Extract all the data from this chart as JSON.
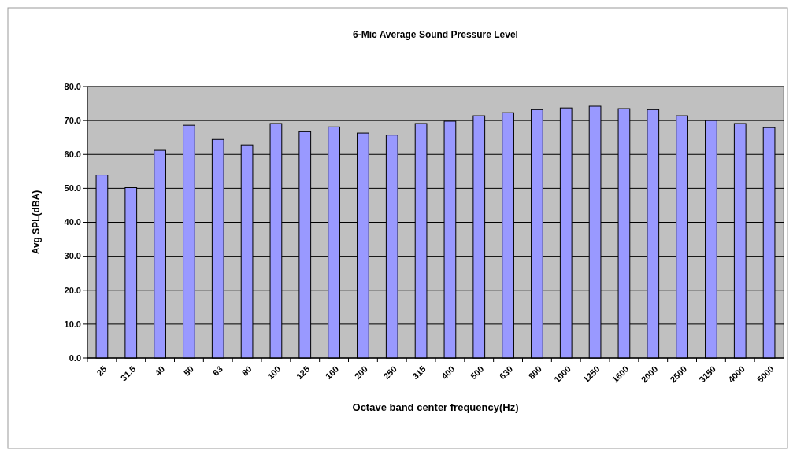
{
  "chart_data": {
    "type": "bar",
    "title": "6-Mic Average Sound Pressure Level",
    "xlabel": "Octave band center frequency(Hz)",
    "ylabel": "Avg SPL(dBA)",
    "categories": [
      "25",
      "31.5",
      "40",
      "50",
      "63",
      "80",
      "100",
      "125",
      "160",
      "200",
      "250",
      "315",
      "400",
      "500",
      "630",
      "800",
      "1000",
      "1250",
      "1600",
      "2000",
      "2500",
      "3150",
      "4000",
      "5000"
    ],
    "values": [
      53.9,
      50.2,
      61.2,
      68.6,
      64.4,
      62.8,
      69.1,
      66.7,
      68.1,
      66.3,
      65.7,
      69.1,
      69.8,
      71.4,
      72.3,
      73.2,
      73.7,
      74.2,
      73.5,
      73.2,
      71.4,
      70.0,
      69.1,
      67.9
    ],
    "color": "#9999ff",
    "ylim": [
      0,
      80
    ],
    "yticks": [
      {
        "value": 0,
        "label": "0.0"
      },
      {
        "value": 10,
        "label": "10.0"
      },
      {
        "value": 20,
        "label": "20.0"
      },
      {
        "value": 30,
        "label": "30.0"
      },
      {
        "value": 40,
        "label": "40.0"
      },
      {
        "value": 50,
        "label": "50.0"
      },
      {
        "value": 60,
        "label": "60.0"
      },
      {
        "value": 70,
        "label": "70.0"
      },
      {
        "value": 80,
        "label": "80.0"
      }
    ],
    "grid": "y"
  }
}
